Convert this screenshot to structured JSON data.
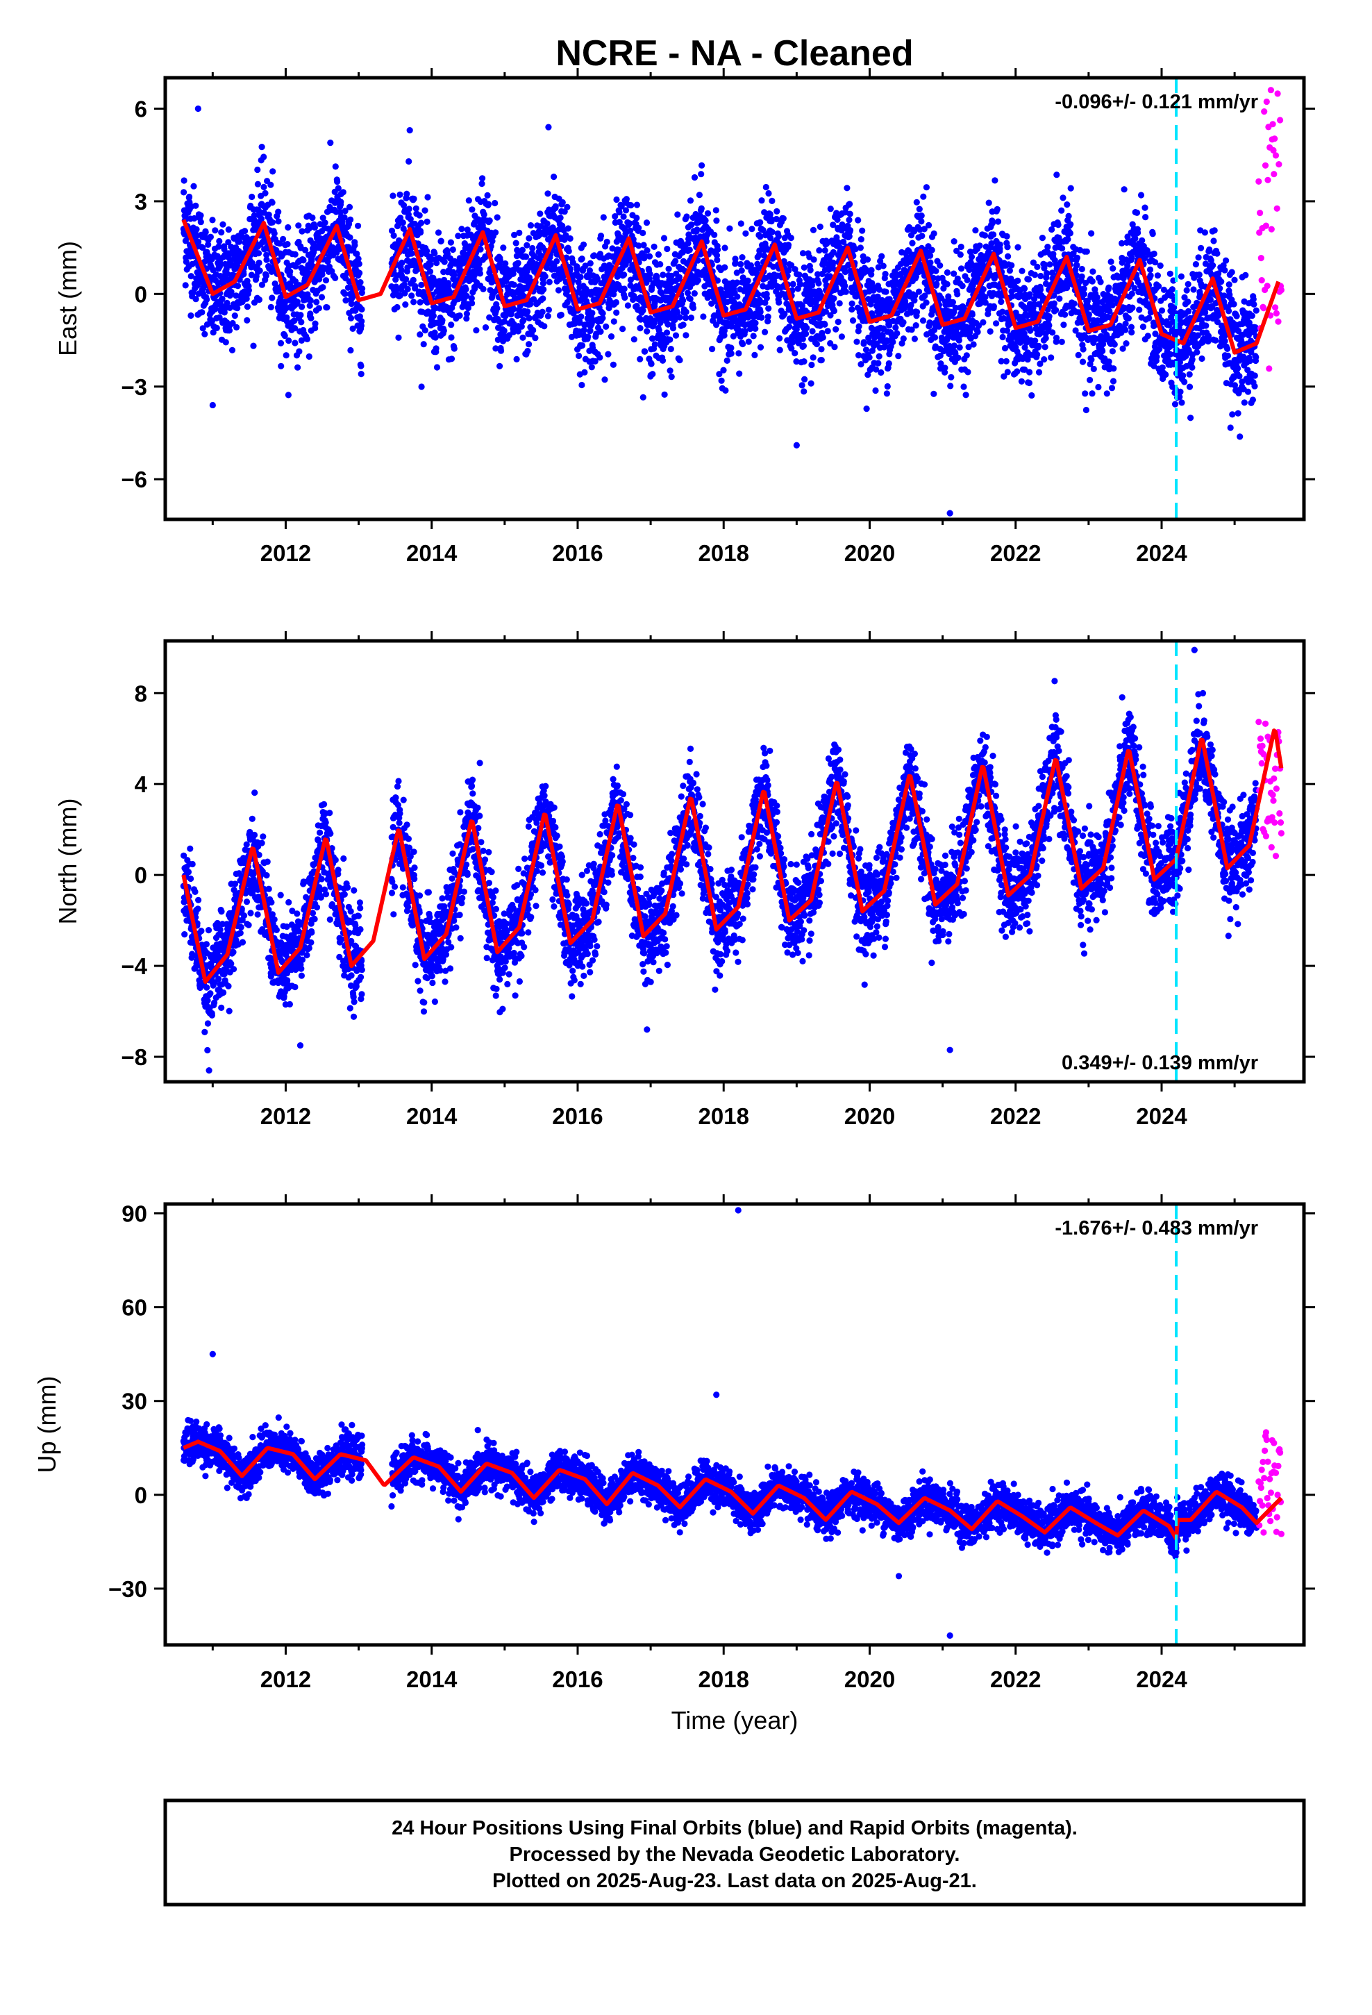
{
  "title": "NCRE  - NA - Cleaned",
  "xlabel": "Time (year)",
  "footer": {
    "line1": "24 Hour Positions Using Final Orbits (blue) and Rapid Orbits (magenta).",
    "line2": "Processed by the Nevada Geodetic Laboratory.",
    "line3": "Plotted on 2025-Aug-23. Last data on 2025-Aug-21."
  },
  "colors": {
    "final_orbits": "#0000ff",
    "rapid_orbits": "#ff00ff",
    "model": "#ff0000",
    "event_line": "#00e5ff"
  },
  "chart_data": [
    {
      "type": "scatter",
      "name": "east",
      "ylabel": "East (mm)",
      "rate_label": "-0.096+/- 0.121 mm/yr",
      "rate_placement": "top-right",
      "xlim": [
        2010.35,
        2025.95
      ],
      "ylim": [
        -7.3,
        7.0
      ],
      "xticks": [
        2012,
        2014,
        2016,
        2018,
        2020,
        2022,
        2024
      ],
      "yticks": [
        -6,
        -3,
        0,
        3,
        6
      ],
      "ytick_labels": [
        "−6",
        "−3",
        "0",
        "3",
        "6"
      ],
      "event_line_x": 2024.2,
      "data_start": 2010.6,
      "data_end": 2025.3,
      "rapid_start": 2025.33,
      "rapid_end": 2025.64,
      "rapid_range": [
        -2.7,
        6.7
      ],
      "noise_sd": 0.95,
      "model": {
        "x": [
          2010.6,
          2011.0,
          2011.3,
          2011.7,
          2012.0,
          2012.3,
          2012.7,
          2013.0,
          2013.3,
          2013.7,
          2014.0,
          2014.3,
          2014.7,
          2015.0,
          2015.3,
          2015.7,
          2016.0,
          2016.3,
          2016.7,
          2017.0,
          2017.3,
          2017.7,
          2018.0,
          2018.3,
          2018.7,
          2019.0,
          2019.3,
          2019.7,
          2020.0,
          2020.3,
          2020.7,
          2021.0,
          2021.3,
          2021.7,
          2022.0,
          2022.3,
          2022.7,
          2023.0,
          2023.3,
          2023.7,
          2024.0,
          2024.3,
          2024.7,
          2025.0,
          2025.3,
          2025.6
        ],
        "y": [
          2.4,
          0.0,
          0.4,
          2.3,
          -0.1,
          0.3,
          2.2,
          -0.2,
          0.0,
          2.1,
          -0.3,
          -0.1,
          2.0,
          -0.4,
          -0.2,
          1.9,
          -0.5,
          -0.3,
          1.8,
          -0.6,
          -0.4,
          1.7,
          -0.7,
          -0.5,
          1.6,
          -0.8,
          -0.6,
          1.5,
          -0.9,
          -0.7,
          1.4,
          -1.0,
          -0.8,
          1.3,
          -1.1,
          -0.9,
          1.2,
          -1.2,
          -1.0,
          1.1,
          -1.3,
          -1.6,
          0.5,
          -1.9,
          -1.6,
          0.4
        ]
      },
      "outliers": [
        {
          "x": 2010.8,
          "y": 6.0
        },
        {
          "x": 2011.0,
          "y": -3.6
        },
        {
          "x": 2013.7,
          "y": 5.3
        },
        {
          "x": 2015.6,
          "y": 5.4
        },
        {
          "x": 2019.0,
          "y": -4.9
        },
        {
          "x": 2021.1,
          "y": -7.1
        }
      ]
    },
    {
      "type": "scatter",
      "name": "north",
      "ylabel": "North (mm)",
      "rate_label": "0.349+/- 0.139 mm/yr",
      "rate_placement": "bottom-right",
      "xlim": [
        2010.35,
        2025.95
      ],
      "ylim": [
        -9.1,
        10.3
      ],
      "xticks": [
        2012,
        2014,
        2016,
        2018,
        2020,
        2022,
        2024
      ],
      "yticks": [
        -8,
        -4,
        0,
        4,
        8
      ],
      "ytick_labels": [
        "−8",
        "−4",
        "0",
        "4",
        "8"
      ],
      "event_line_x": 2024.2,
      "data_start": 2010.6,
      "data_end": 2025.3,
      "rapid_start": 2025.33,
      "rapid_end": 2025.64,
      "rapid_range": [
        0.5,
        6.8
      ],
      "noise_sd": 1.0,
      "model": {
        "x": [
          2010.6,
          2010.9,
          2011.2,
          2011.55,
          2011.9,
          2012.2,
          2012.55,
          2012.9,
          2013.2,
          2013.55,
          2013.9,
          2014.2,
          2014.55,
          2014.9,
          2015.2,
          2015.55,
          2015.9,
          2016.2,
          2016.55,
          2016.9,
          2017.2,
          2017.55,
          2017.9,
          2018.2,
          2018.55,
          2018.9,
          2019.2,
          2019.55,
          2019.9,
          2020.2,
          2020.55,
          2020.9,
          2021.2,
          2021.55,
          2021.9,
          2022.2,
          2022.55,
          2022.9,
          2023.2,
          2023.55,
          2023.9,
          2024.2,
          2024.55,
          2024.9,
          2025.2,
          2025.55,
          2025.64
        ],
        "y": [
          0.0,
          -4.7,
          -3.5,
          1.3,
          -4.3,
          -3.2,
          1.7,
          -4.0,
          -2.9,
          2.1,
          -3.7,
          -2.6,
          2.5,
          -3.4,
          -2.3,
          2.8,
          -3.0,
          -2.0,
          3.2,
          -2.7,
          -1.7,
          3.5,
          -2.4,
          -1.4,
          3.8,
          -2.0,
          -1.1,
          4.2,
          -1.6,
          -0.7,
          4.5,
          -1.3,
          -0.4,
          4.9,
          -0.9,
          0.0,
          5.2,
          -0.6,
          0.3,
          5.6,
          -0.2,
          0.7,
          6.1,
          0.3,
          1.3,
          6.5,
          4.7
        ]
      },
      "outliers": [
        {
          "x": 2010.95,
          "y": -8.6
        },
        {
          "x": 2012.2,
          "y": -7.5
        },
        {
          "x": 2016.95,
          "y": -6.8
        },
        {
          "x": 2021.1,
          "y": -7.7
        },
        {
          "x": 2024.45,
          "y": 9.9
        }
      ]
    },
    {
      "type": "scatter",
      "name": "up",
      "ylabel": "Up (mm)",
      "rate_label": "-1.676+/- 0.483 mm/yr",
      "rate_placement": "top-right",
      "xlim": [
        2010.35,
        2025.95
      ],
      "ylim": [
        -48,
        93
      ],
      "xticks": [
        2012,
        2014,
        2016,
        2018,
        2020,
        2022,
        2024
      ],
      "yticks": [
        -30,
        0,
        30,
        60,
        90
      ],
      "ytick_labels": [
        "−30",
        "0",
        "30",
        "60",
        "90"
      ],
      "event_line_x": 2024.2,
      "data_start": 2010.6,
      "data_end": 2025.3,
      "rapid_start": 2025.33,
      "rapid_end": 2025.64,
      "rapid_range": [
        -14,
        23
      ],
      "noise_sd": 3.2,
      "model": {
        "x": [
          2010.6,
          2010.8,
          2011.1,
          2011.4,
          2011.75,
          2012.1,
          2012.4,
          2012.75,
          2013.1,
          2013.35,
          2013.75,
          2014.1,
          2014.4,
          2014.75,
          2015.1,
          2015.4,
          2015.75,
          2016.1,
          2016.4,
          2016.75,
          2017.1,
          2017.4,
          2017.75,
          2018.1,
          2018.4,
          2018.75,
          2019.1,
          2019.4,
          2019.75,
          2020.1,
          2020.4,
          2020.75,
          2021.1,
          2021.4,
          2021.75,
          2022.1,
          2022.4,
          2022.75,
          2023.1,
          2023.4,
          2023.75,
          2024.1,
          2024.2,
          2024.21,
          2024.4,
          2024.75,
          2025.1,
          2025.3,
          2025.64
        ],
        "y": [
          15.0,
          17.0,
          14.0,
          6.0,
          15.0,
          13.0,
          5.0,
          13.0,
          11.0,
          3.0,
          12.0,
          9.0,
          1.0,
          10.0,
          7.0,
          -1.0,
          8.0,
          5.0,
          -3.0,
          7.0,
          3.0,
          -4.0,
          5.0,
          1.0,
          -6.0,
          3.0,
          -1.0,
          -8.0,
          1.0,
          -3.0,
          -9.0,
          -1.0,
          -5.0,
          -11.0,
          -2.0,
          -7.0,
          -12.0,
          -4.0,
          -9.0,
          -13.0,
          -5.0,
          -10.0,
          -14.0,
          -8.0,
          -8.0,
          1.0,
          -4.0,
          -9.0,
          -1.0
        ]
      },
      "outliers": [
        {
          "x": 2011.0,
          "y": 45.0
        },
        {
          "x": 2017.9,
          "y": 32.0
        },
        {
          "x": 2018.2,
          "y": 91.0
        },
        {
          "x": 2021.1,
          "y": -45.0
        },
        {
          "x": 2020.4,
          "y": -26.0
        }
      ]
    }
  ]
}
